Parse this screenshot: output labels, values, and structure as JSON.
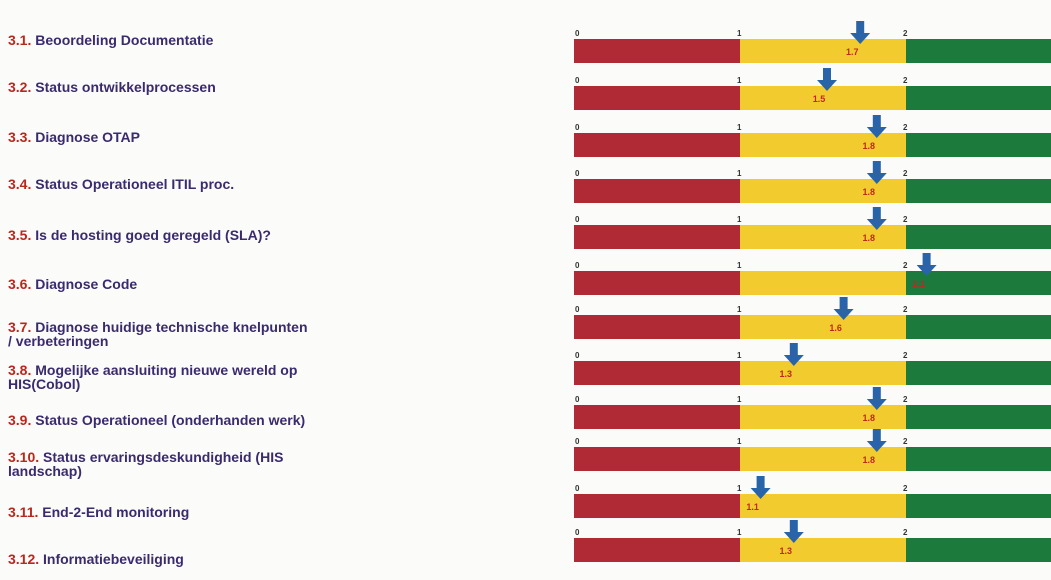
{
  "colors": {
    "red": "#b02a36",
    "yellow": "#f2cc2e",
    "green": "#1c7a3d",
    "arrow": "#2a64a8",
    "label": "#3a2a6e",
    "number": "#b8281f"
  },
  "chart_data": {
    "type": "bar",
    "scale": [
      0,
      3
    ],
    "ticks": [
      "0",
      "1",
      "2"
    ],
    "bands": [
      {
        "from": 0,
        "to": 1,
        "color": "red"
      },
      {
        "from": 1,
        "to": 2,
        "color": "yellow"
      },
      {
        "from": 2,
        "to": 3,
        "color": "green"
      }
    ],
    "rows": [
      {
        "num": "3.1.",
        "label": "Beoordeling Documentatie",
        "value": 1.7,
        "value_label": "1.7"
      },
      {
        "num": "3.2.",
        "label": "Status ontwikkelprocessen",
        "value": 1.5,
        "value_label": "1.5"
      },
      {
        "num": "3.3.",
        "label": "Diagnose OTAP",
        "value": 1.8,
        "value_label": "1.8"
      },
      {
        "num": "3.4.",
        "label": "Status Operationeel ITIL proc.",
        "value": 1.8,
        "value_label": "1.8"
      },
      {
        "num": "3.5.",
        "label": "Is de hosting goed geregeld (SLA)?",
        "value": 1.8,
        "value_label": "1.8"
      },
      {
        "num": "3.6.",
        "label": "Diagnose Code",
        "value": 2.1,
        "value_label": "2.1"
      },
      {
        "num": "3.7.",
        "label": "Diagnose huidige technische knelpunten / verbeteringen",
        "value": 1.6,
        "value_label": "1.6"
      },
      {
        "num": "3.8.",
        "label": "Mogelijke aansluiting nieuwe wereld op HIS(Cobol)",
        "value": 1.3,
        "value_label": "1.3"
      },
      {
        "num": "3.9.",
        "label": "Status Operationeel (onderhanden werk)",
        "value": 1.8,
        "value_label": "1.8"
      },
      {
        "num": "3.10.",
        "label": "Status ervaringsdeskundigheid (HIS landschap)",
        "value": 1.8,
        "value_label": "1.8"
      },
      {
        "num": "3.11.",
        "label": "End-2-End monitoring",
        "value": 1.1,
        "value_label": "1.1"
      },
      {
        "num": "3.12.",
        "label": "Informatiebeveiliging",
        "value": 1.3,
        "value_label": "1.3"
      }
    ]
  }
}
